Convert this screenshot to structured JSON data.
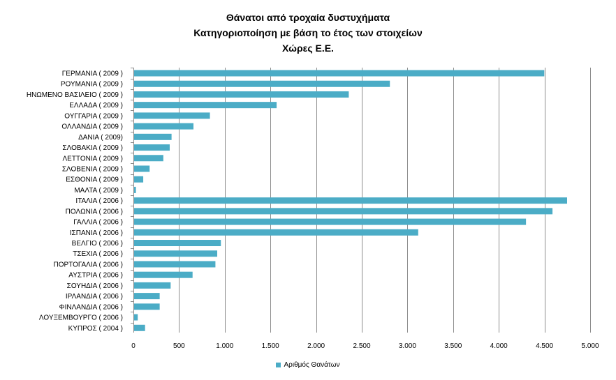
{
  "chart_data": {
    "type": "bar",
    "orientation": "horizontal",
    "title_lines": [
      "Θάνατοι από τροχαία δυστυχήματα",
      "Κατηγοριοποίηση με βάση το έτος των στοιχείων",
      "Χώρες Ε.Ε."
    ],
    "categories": [
      "ΓΕΡΜΑΝΙΑ ( 2009 )",
      "ΡΟΥΜΑΝΙΑ ( 2009 )",
      "ΗΝΩΜΕΝΟ ΒΑΣΙΛΕΙΟ ( 2009 )",
      "ΕΛΛΑΔΑ ( 2009 )",
      "ΟΥΓΓΑΡΙΑ ( 2009 )",
      "ΟΛΛΑΝΔΙΑ ( 2009 )",
      "ΔΑΝΙΑ ( 2009)",
      "ΣΛΟΒΑΚΙΑ ( 2009 )",
      "ΛΕΤΤΟΝΙΑ ( 2009 )",
      "ΣΛΟΒΕΝΙΑ ( 2009 )",
      "ΕΣΘΟΝΙΑ ( 2009 )",
      "ΜΑΛΤΑ ( 2009 )",
      "ΙΤΑΛΙΑ ( 2006 )",
      "ΠΟΛΩΝΙΑ ( 2006 )",
      "ΓΑΛΛΙΑ ( 2006 )",
      "ΙΣΠΑΝΙΑ ( 2006 )",
      "ΒΕΛΓΙΟ ( 2006 )",
      "ΤΣΕΧΙΑ ( 2006 )",
      "ΠΟΡΤΟΓΑΛΙΑ ( 2006 )",
      "ΑΥΣΤΡΙΑ ( 2006 )",
      "ΣΟΥΗΔΙΑ ( 2006 )",
      "ΙΡΛΑΝΔΙΑ ( 2006 )",
      "ΦΙΝΛΑΝΔΙΑ ( 2006 )",
      "ΛΟΥΞΕΜΒΟΥΡΓΟ ( 2006 )",
      "ΚΥΠΡΟΣ ( 2004 )"
    ],
    "series": [
      {
        "name": "Αριθμός Θανάτων",
        "color": "#4BACC6",
        "values": [
          4490,
          2800,
          2350,
          1560,
          830,
          650,
          410,
          390,
          320,
          170,
          100,
          20,
          4740,
          4580,
          4290,
          3110,
          950,
          910,
          890,
          640,
          400,
          280,
          280,
          40,
          120
        ]
      }
    ],
    "xlim": [
      0,
      5000
    ],
    "x_ticks": [
      0,
      500,
      1000,
      1500,
      2000,
      2500,
      3000,
      3500,
      4000,
      4500,
      5000
    ],
    "x_tick_labels": [
      "0",
      "500",
      "1.000",
      "1.500",
      "2.000",
      "2.500",
      "3.000",
      "3.500",
      "4.000",
      "4.500",
      "5.000"
    ],
    "grid": true,
    "legend_position": "bottom"
  }
}
